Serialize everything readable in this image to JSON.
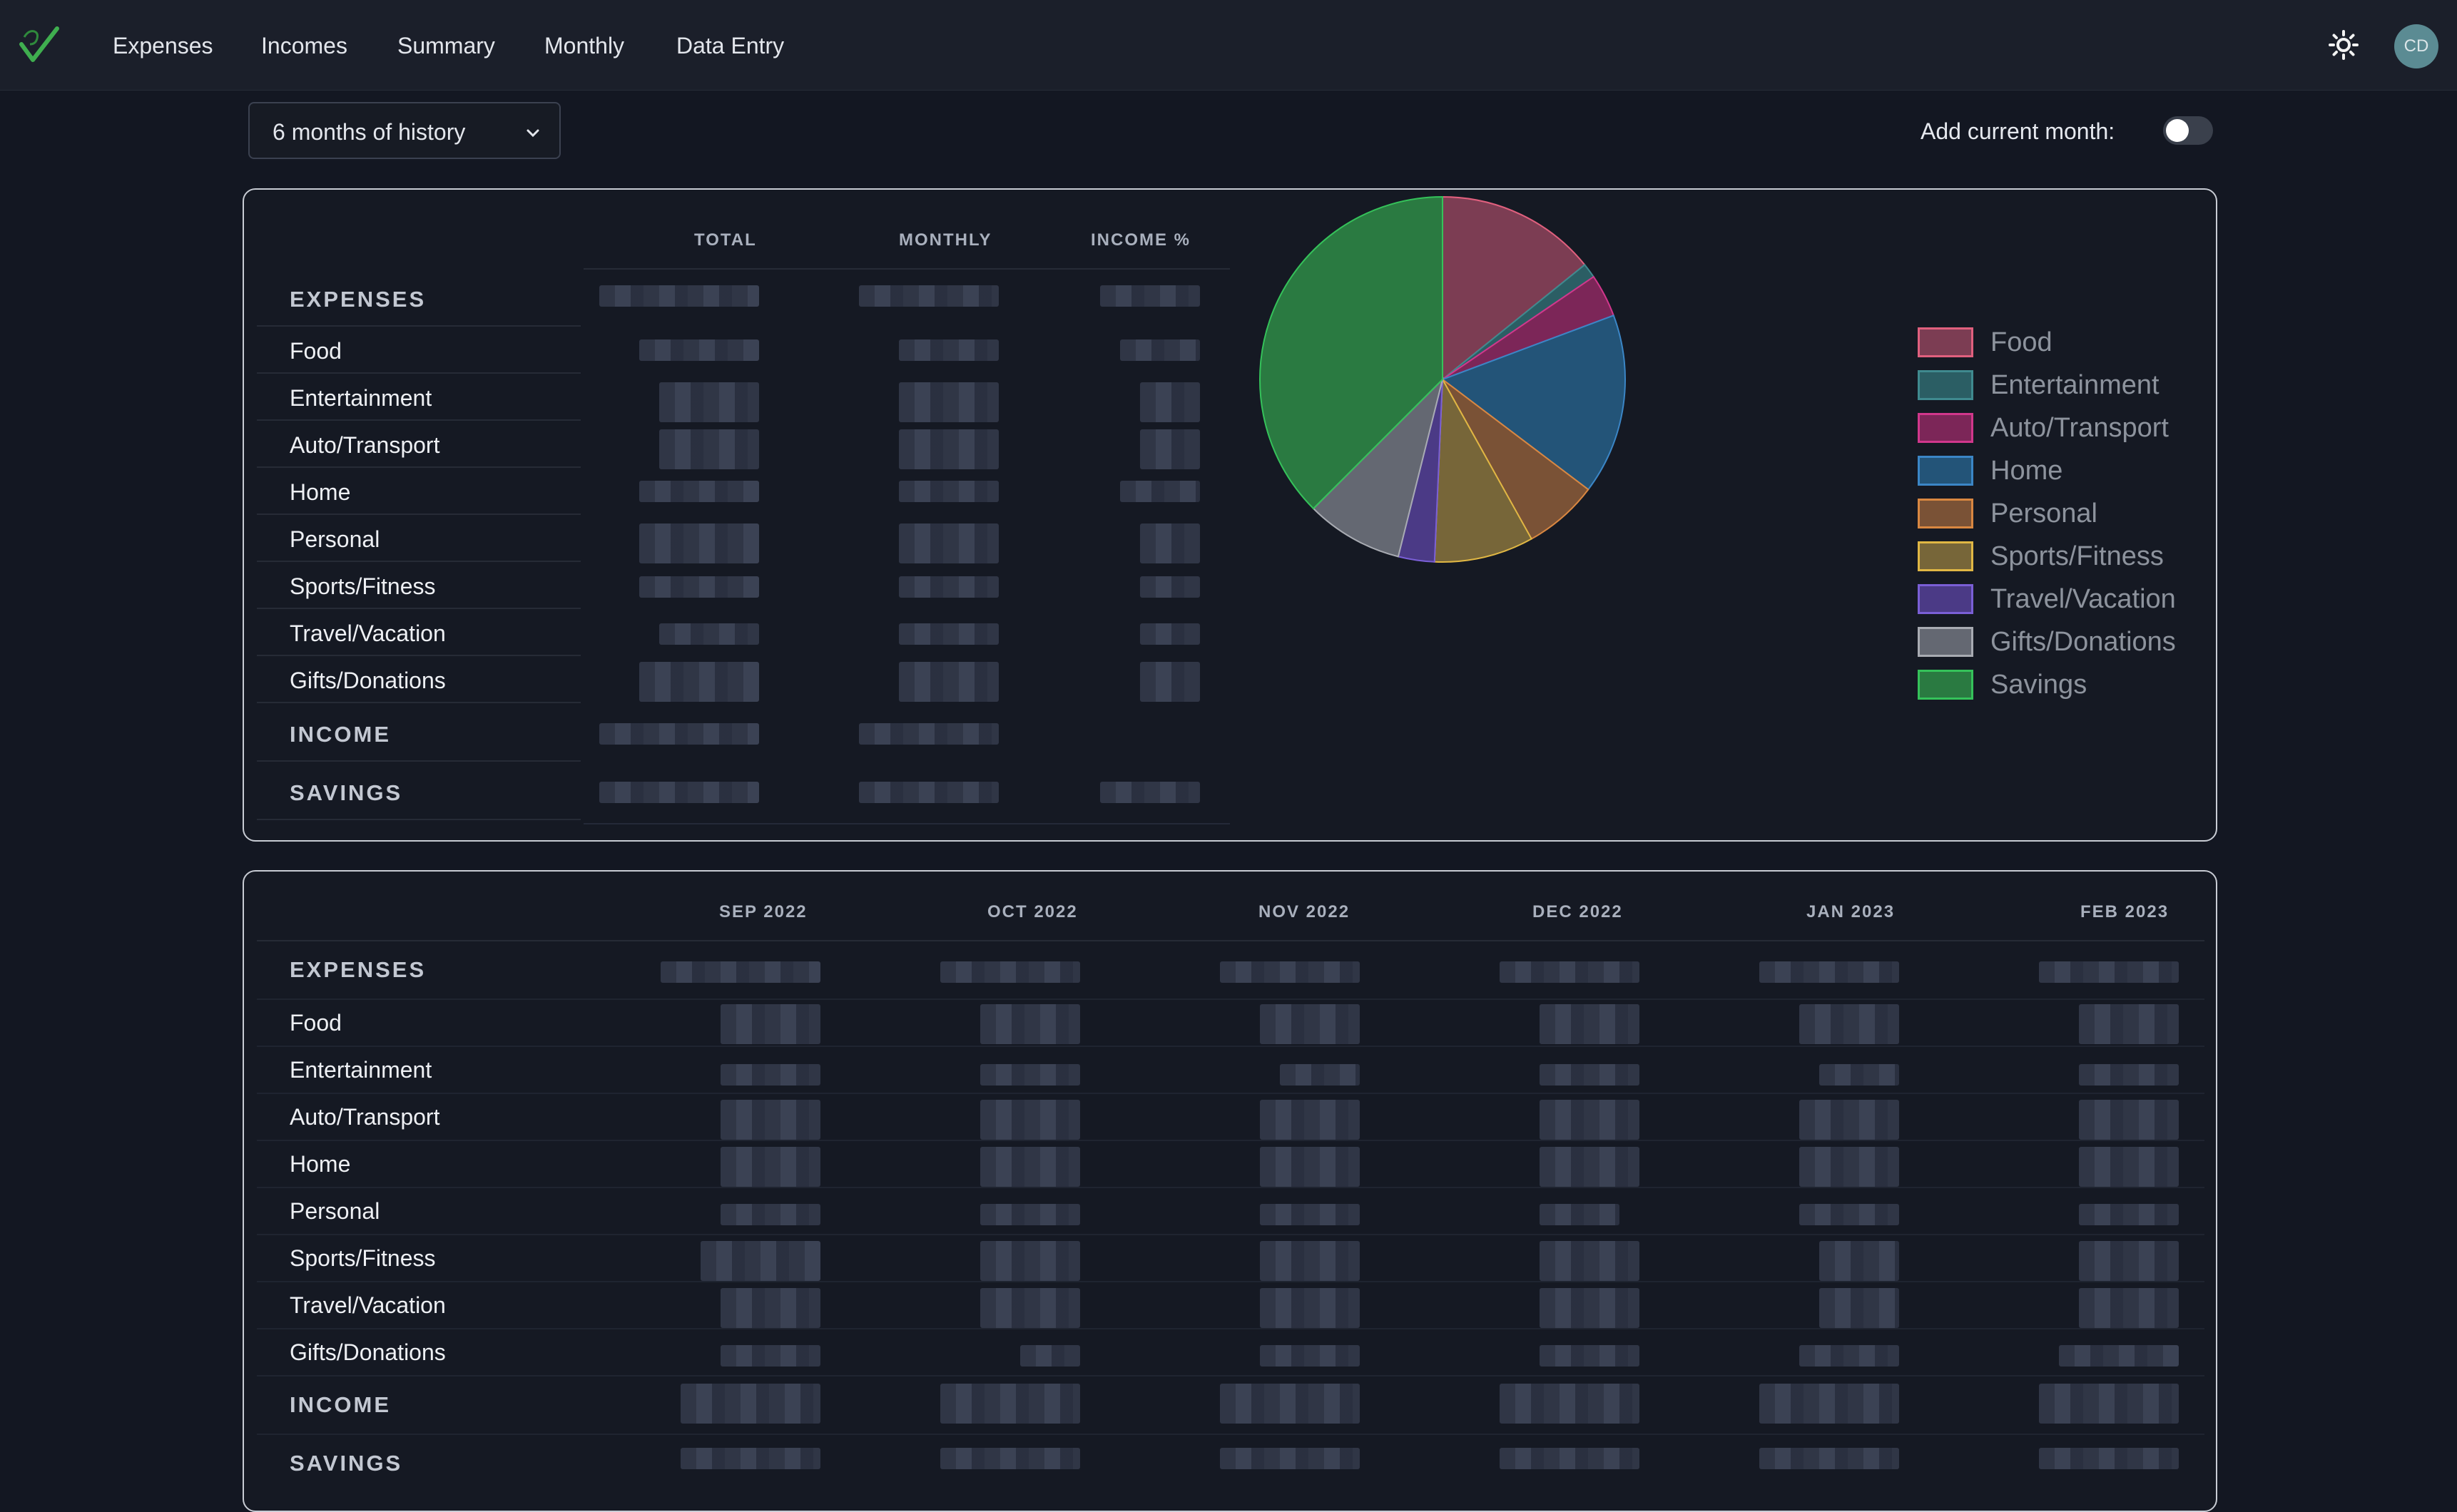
{
  "nav": {
    "items": [
      "Expenses",
      "Incomes",
      "Summary",
      "Monthly",
      "Data Entry"
    ],
    "avatar_initials": "CD",
    "theme_icon": "sun-icon",
    "logo_icon": "app-logo-icon"
  },
  "controls": {
    "history_select": "6 months of history",
    "add_current_month_label": "Add current month:",
    "add_current_month_on": false
  },
  "summary_table": {
    "columns": [
      "TOTAL",
      "MONTHLY",
      "INCOME %"
    ],
    "sections": {
      "expenses": "EXPENSES",
      "income": "INCOME",
      "savings": "SAVINGS"
    },
    "categories": [
      "Food",
      "Entertainment",
      "Auto/Transport",
      "Home",
      "Personal",
      "Sports/Fitness",
      "Travel/Vacation",
      "Gifts/Donations"
    ]
  },
  "monthly_table": {
    "columns": [
      "SEP 2022",
      "OCT 2022",
      "NOV 2022",
      "DEC 2022",
      "JAN 2023",
      "FEB 2023"
    ],
    "sections": {
      "expenses": "EXPENSES",
      "income": "INCOME",
      "savings": "SAVINGS"
    },
    "categories": [
      "Food",
      "Entertainment",
      "Auto/Transport",
      "Home",
      "Personal",
      "Sports/Fitness",
      "Travel/Vacation",
      "Gifts/Donations"
    ]
  },
  "chart_data": {
    "type": "pie",
    "title": "",
    "legend_position": "right",
    "slices": [
      {
        "label": "Food",
        "value": 14.2,
        "color": "#7c3d53",
        "border": "#e0607e"
      },
      {
        "label": "Entertainment",
        "value": 1.3,
        "color": "#2b5e64",
        "border": "#3f8a8f"
      },
      {
        "label": "Auto/Transport",
        "value": 3.8,
        "color": "#7c2658",
        "border": "#d1378c"
      },
      {
        "label": "Home",
        "value": 16.0,
        "color": "#235478",
        "border": "#3b86c6"
      },
      {
        "label": "Personal",
        "value": 6.6,
        "color": "#7a5236",
        "border": "#d98741"
      },
      {
        "label": "Sports/Fitness",
        "value": 8.8,
        "color": "#776639",
        "border": "#e0b744"
      },
      {
        "label": "Travel/Vacation",
        "value": 3.2,
        "color": "#4b3a86",
        "border": "#7a5fd6"
      },
      {
        "label": "Gifts/Donations",
        "value": 8.6,
        "color": "#646872",
        "border": "#a8abb2"
      },
      {
        "label": "Savings",
        "value": 37.5,
        "color": "#2a7a41",
        "border": "#35c25a"
      }
    ]
  }
}
